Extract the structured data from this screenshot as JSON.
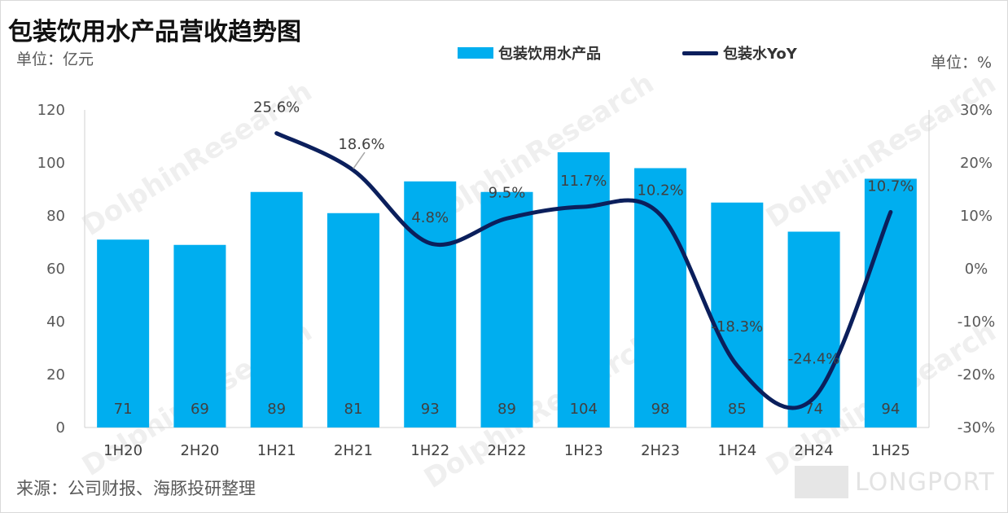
{
  "title": "包装饮用水产品营收趋势图",
  "unit_left": "单位：亿元",
  "unit_right": "单位：%",
  "source": "来源：公司财报、海豚投研整理",
  "watermark": "DolphinResearch",
  "watermark_cn": "海豚投研",
  "logo_text": "LONGPORT",
  "colors": {
    "bar": "#00aeef",
    "line": "#0b1f5c"
  },
  "chart_data": {
    "type": "bar",
    "title": "包装饮用水产品营收趋势图",
    "categories": [
      "1H20",
      "2H20",
      "1H21",
      "2H21",
      "1H22",
      "2H22",
      "1H23",
      "2H23",
      "1H24",
      "2H24",
      "1H25"
    ],
    "series": [
      {
        "name": "包装饮用水产品",
        "type": "bar",
        "axis": "left",
        "values": [
          71,
          69,
          89,
          81,
          93,
          89,
          104,
          98,
          85,
          74,
          94
        ],
        "labels": [
          "71",
          "69",
          "89",
          "81",
          "93",
          "89",
          "104",
          "98",
          "85",
          "74",
          "94"
        ]
      },
      {
        "name": "包装水YoY",
        "type": "line",
        "axis": "right",
        "values": [
          null,
          null,
          25.6,
          18.6,
          4.8,
          9.5,
          11.7,
          10.2,
          -18.3,
          -24.4,
          10.7
        ],
        "labels": [
          "",
          "",
          "25.6%",
          "18.6%",
          "4.8%",
          "9.5%",
          "11.7%",
          "10.2%",
          "-18.3%",
          "-24.4%",
          "10.7%"
        ]
      }
    ],
    "y_left": {
      "min": 0,
      "max": 120,
      "ticks": [
        0,
        20,
        40,
        60,
        80,
        100,
        120
      ],
      "tick_labels": [
        "0",
        "20",
        "40",
        "60",
        "80",
        "100",
        "120"
      ]
    },
    "y_right": {
      "min": -30,
      "max": 30,
      "ticks": [
        -30,
        -20,
        -10,
        0,
        10,
        20,
        30
      ],
      "tick_labels": [
        "-30%",
        "-20%",
        "-10%",
        "0%",
        "10%",
        "20%",
        "30%"
      ]
    },
    "legend_position": "top",
    "grid": false
  }
}
